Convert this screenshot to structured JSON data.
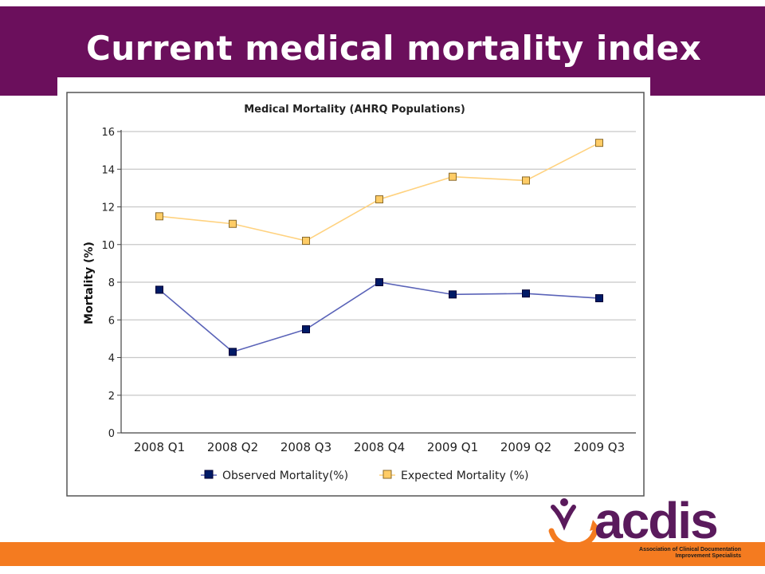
{
  "slide": {
    "title": "Current medical mortality index"
  },
  "colors": {
    "title_bar": "#6b0f5c",
    "bottom_bar": "#f47b20",
    "observed": "#001a66",
    "observed_line": "#5a63b8",
    "expected": "#ffcc66",
    "expected_line": "#ffd27f",
    "grid": "#c8c8c8"
  },
  "chart_data": {
    "type": "line",
    "title": "Medical Mortality (AHRQ Populations)",
    "xlabel": "",
    "ylabel": "Mortality (%)",
    "categories": [
      "2008 Q1",
      "2008 Q2",
      "2008 Q3",
      "2008 Q4",
      "2009 Q1",
      "2009 Q2",
      "2009 Q3"
    ],
    "ylim": [
      0,
      16
    ],
    "yticks": [
      "0",
      "2",
      "4",
      "6",
      "8",
      "10",
      "12",
      "14",
      "16"
    ],
    "grid": true,
    "legend_position": "bottom",
    "series": [
      {
        "name": "Observed Mortality(%)",
        "values": [
          7.6,
          4.3,
          5.5,
          8.0,
          7.35,
          7.4,
          7.15
        ]
      },
      {
        "name": "Expected Mortality (%)",
        "values": [
          11.5,
          11.1,
          10.2,
          12.4,
          13.6,
          13.4,
          15.4
        ]
      }
    ]
  },
  "logo": {
    "name": "acdis",
    "tagline_line1": "Association of Clinical Documentation",
    "tagline_line2": "Improvement Specialists",
    "icon": "person-swoosh-icon"
  }
}
